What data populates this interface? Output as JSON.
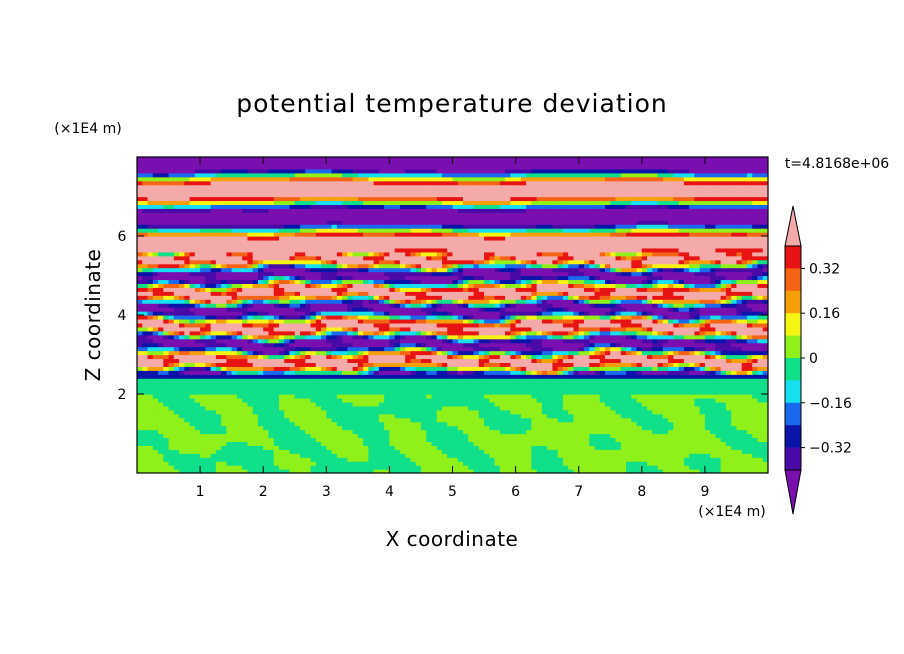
{
  "chart_data": {
    "type": "heatmap",
    "title": "potential temperature deviation",
    "xlabel": "X coordinate",
    "ylabel": "Z coordinate",
    "x_unit": "(×1E4 m)",
    "y_unit": "(×1E4 m)",
    "time_label": "t=4.8168e+06",
    "xlim": [
      0,
      10
    ],
    "ylim": [
      0,
      8
    ],
    "x_ticks": [
      "1",
      "2",
      "3",
      "4",
      "5",
      "6",
      "7",
      "8",
      "9"
    ],
    "y_ticks": [
      "2",
      "4",
      "6"
    ],
    "colorbar": {
      "levels": [
        -0.48,
        -0.4,
        -0.32,
        -0.24,
        -0.16,
        -0.08,
        0,
        0.08,
        0.16,
        0.24,
        0.32,
        0.4,
        0.48
      ],
      "colors": [
        "#7a0fb0",
        "#4a0aa8",
        "#0a14a8",
        "#1a6af0",
        "#16e0f0",
        "#10e08a",
        "#8ff01a",
        "#f5f514",
        "#f5a00a",
        "#f56414",
        "#e81414",
        "#f5aaaa"
      ],
      "tick_labels": [
        "0.32",
        "0.16",
        "0",
        "−0.16",
        "−0.32"
      ],
      "tick_values": [
        0.32,
        0.16,
        0,
        -0.16,
        -0.32
      ]
    },
    "field_summary": {
      "description_layers": [
        {
          "z_range": [
            0,
            2.0
          ],
          "value_range": [
            -0.08,
            0.08
          ]
        },
        {
          "z_range": [
            2.0,
            2.5
          ],
          "value_range": [
            -0.08,
            0.0
          ]
        },
        {
          "z_range": [
            2.5,
            5.5
          ],
          "value_range": [
            -0.48,
            0.48
          ]
        },
        {
          "z_range": [
            5.5,
            8.0
          ],
          "value_range": [
            -0.48,
            0.48
          ]
        }
      ]
    }
  }
}
